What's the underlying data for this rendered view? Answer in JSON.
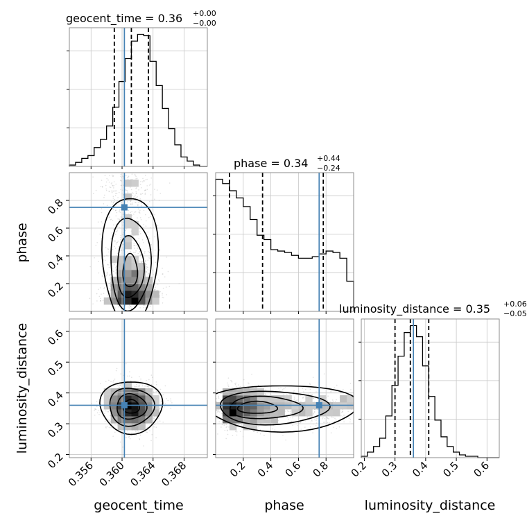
{
  "chart_data": {
    "type": "corner",
    "parameters": [
      "geocent_time",
      "phase",
      "luminosity_distance"
    ],
    "truths": {
      "geocent_time": 0.3603,
      "phase": 0.75,
      "luminosity_distance": 0.36
    },
    "titles": [
      {
        "parameter": "geocent_time",
        "label": "geocent_time = 0.36",
        "upper": "+0.00",
        "lower": "−0.00"
      },
      {
        "parameter": "phase",
        "label": "phase = 0.34",
        "upper": "+0.44",
        "lower": "−0.24"
      },
      {
        "parameter": "luminosity_distance",
        "label": "luminosity_distance = 0.35",
        "upper": "+0.06",
        "lower": "−0.05"
      }
    ],
    "axes": {
      "geocent_time": {
        "range": [
          0.3532,
          0.371
        ],
        "ticks": [
          0.356,
          0.36,
          0.364,
          0.368
        ],
        "tick_labels": [
          "0.356",
          "0.360",
          "0.364",
          "0.368"
        ]
      },
      "phase": {
        "range": [
          0.0,
          1.0
        ],
        "ticks": [
          0.2,
          0.4,
          0.6,
          0.8
        ],
        "tick_labels": [
          "0.2",
          "0.4",
          "0.6",
          "0.8"
        ]
      },
      "luminosity_distance": {
        "range": [
          0.19,
          0.64
        ],
        "ticks": [
          0.2,
          0.3,
          0.4,
          0.5,
          0.6
        ],
        "tick_labels": [
          "0.2",
          "0.3",
          "0.4",
          "0.5",
          "0.6"
        ]
      }
    },
    "histograms": {
      "geocent_time": {
        "edges": [
          0.3532,
          0.354,
          0.3548,
          0.3556,
          0.3564,
          0.3572,
          0.358,
          0.3588,
          0.3596,
          0.3604,
          0.3612,
          0.362,
          0.3628,
          0.3636,
          0.3644,
          0.3652,
          0.366,
          0.3668,
          0.3676,
          0.3684,
          0.3692,
          0.37,
          0.371
        ],
        "counts": [
          1,
          3,
          6,
          8,
          14,
          20,
          30,
          44,
          63,
          80,
          93,
          98,
          97,
          78,
          60,
          43,
          28,
          16,
          7,
          4,
          1,
          0
        ]
      },
      "phase": {
        "edges": [
          0.0,
          0.05,
          0.1,
          0.15,
          0.2,
          0.25,
          0.3,
          0.35,
          0.4,
          0.45,
          0.5,
          0.55,
          0.6,
          0.65,
          0.7,
          0.75,
          0.8,
          0.85,
          0.9,
          0.95,
          1.0
        ],
        "counts": [
          92,
          89,
          84,
          79,
          73,
          64,
          53,
          50,
          43,
          42,
          41,
          39,
          37,
          37,
          38,
          40,
          42,
          41,
          37,
          21
        ]
      },
      "luminosity_distance": {
        "edges": [
          0.19,
          0.21,
          0.23,
          0.25,
          0.27,
          0.29,
          0.31,
          0.33,
          0.35,
          0.37,
          0.39,
          0.41,
          0.43,
          0.45,
          0.47,
          0.49,
          0.51,
          0.53,
          0.55,
          0.57,
          0.59,
          0.61,
          0.64
        ],
        "counts": [
          1,
          4,
          8,
          14,
          30,
          52,
          73,
          90,
          95,
          87,
          66,
          44,
          27,
          15,
          8,
          4,
          2,
          1,
          1,
          0,
          0,
          0
        ]
      }
    },
    "quantiles": {
      "geocent_time": [
        0.359,
        0.3612,
        0.3634
      ],
      "phase": [
        0.1,
        0.34,
        0.78
      ],
      "luminosity_distance": [
        0.3,
        0.35,
        0.41
      ]
    },
    "pairs": [
      {
        "x": "geocent_time",
        "y": "phase"
      },
      {
        "x": "geocent_time",
        "y": "luminosity_distance"
      },
      {
        "x": "phase",
        "y": "luminosity_distance"
      }
    ],
    "grid": true
  }
}
